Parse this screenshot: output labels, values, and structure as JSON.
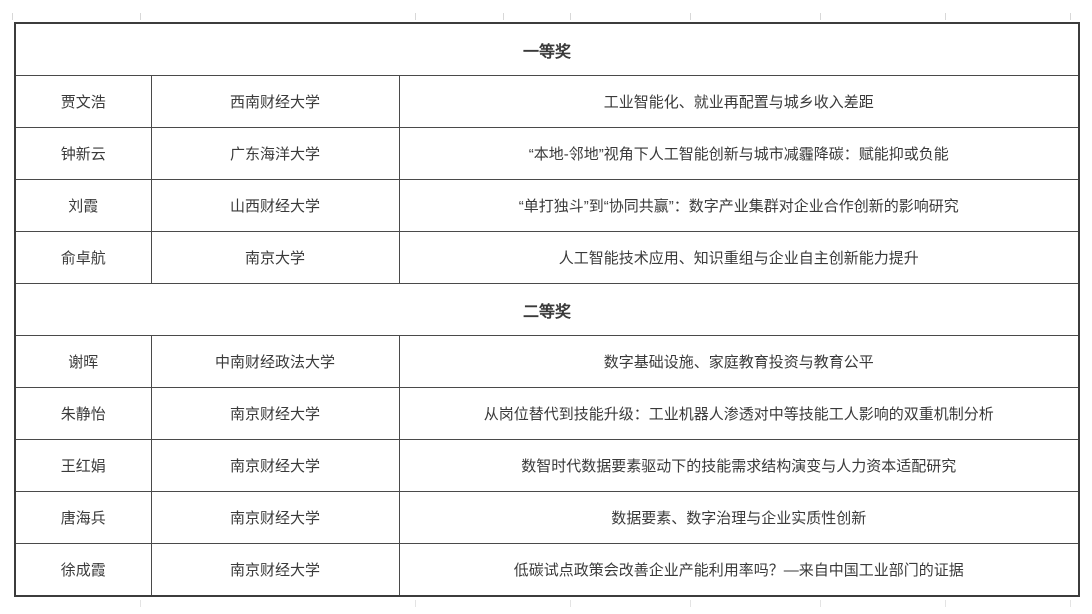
{
  "page": {
    "background": "#ffffff"
  },
  "table": {
    "border_color": "#4a4a4a",
    "outer_border_color": "#3c3c3c",
    "text_color": "#3a3a3a",
    "columns": [
      "name",
      "university",
      "title"
    ],
    "sections": [
      {
        "header": "一等奖",
        "rows": [
          {
            "name": "贾文浩",
            "university": "西南财经大学",
            "title": "工业智能化、就业再配置与城乡收入差距"
          },
          {
            "name": "钟新云",
            "university": "广东海洋大学",
            "title": "“本地-邻地”视角下人工智能创新与城市减霾降碳：赋能抑或负能"
          },
          {
            "name": "刘霞",
            "university": "山西财经大学",
            "title": "“单打独斗”到“协同共赢”：数字产业集群对企业合作创新的影响研究"
          },
          {
            "name": "俞卓航",
            "university": "南京大学",
            "title": "人工智能技术应用、知识重组与企业自主创新能力提升"
          }
        ]
      },
      {
        "header": "二等奖",
        "rows": [
          {
            "name": "谢晖",
            "university": "中南财经政法大学",
            "title": "数字基础设施、家庭教育投资与教育公平"
          },
          {
            "name": "朱静怡",
            "university": "南京财经大学",
            "title": "从岗位替代到技能升级：工业机器人渗透对中等技能工人影响的双重机制分析"
          },
          {
            "name": "王红娟",
            "university": "南京财经大学",
            "title": "数智时代数据要素驱动下的技能需求结构演变与人力资本适配研究"
          },
          {
            "name": "唐海兵",
            "university": "南京财经大学",
            "title": "数据要素、数字治理与企业实质性创新"
          },
          {
            "name": "徐成霞",
            "university": "南京财经大学",
            "title": "低碳试点政策会改善企业产能利用率吗？—来自中国工业部门的证据"
          }
        ]
      }
    ]
  }
}
